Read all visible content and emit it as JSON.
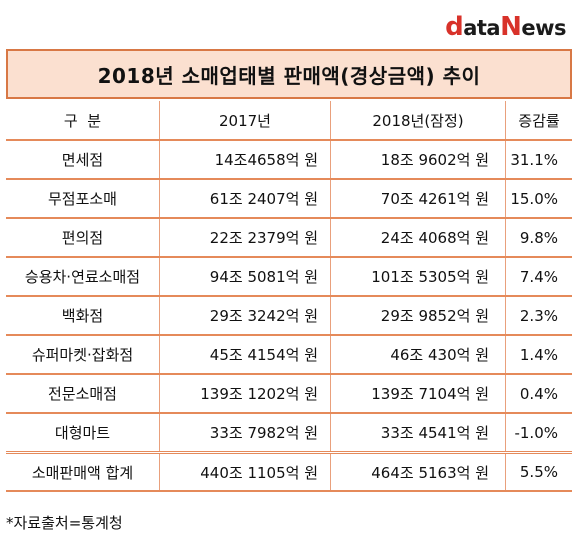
{
  "logo": {
    "first": "d",
    "middle": "ata",
    "n": "N",
    "end": "ews"
  },
  "title": "2018년 소매업태별 판매액(경상금액) 추이",
  "table": {
    "headers": [
      "구  분",
      "2017년",
      "2018년(잠정)",
      "증감률"
    ],
    "rows": [
      {
        "name": "면세점",
        "y2017": "14조4658억 원",
        "y2018": "18조 9602억 원",
        "rate": "31.1%"
      },
      {
        "name": "무점포소매",
        "y2017": "61조 2407억 원",
        "y2018": "70조 4261억 원",
        "rate": "15.0%"
      },
      {
        "name": "편의점",
        "y2017": "22조 2379억 원",
        "y2018": "24조 4068억 원",
        "rate": "9.8%"
      },
      {
        "name": "승용차·연료소매점",
        "y2017": "94조 5081억 원",
        "y2018": "101조 5305억 원",
        "rate": "7.4%"
      },
      {
        "name": "백화점",
        "y2017": "29조 3242억 원",
        "y2018": "29조 9852억 원",
        "rate": "2.3%"
      },
      {
        "name": "슈퍼마켓·잡화점",
        "y2017": "45조 4154억 원",
        "y2018": "46조 430억 원",
        "rate": "1.4%"
      },
      {
        "name": "전문소매점",
        "y2017": "139조 1202억 원",
        "y2018": "139조 7104억 원",
        "rate": "0.4%"
      },
      {
        "name": "대형마트",
        "y2017": "33조 7982억 원",
        "y2018": "33조 4541억 원",
        "rate": "-1.0%"
      }
    ],
    "total": {
      "name": "소매판매액 합계",
      "y2017": "440조 1105억 원",
      "y2018": "464조 5163억 원",
      "rate": "5.5%"
    }
  },
  "source": "*자료출처=통계청"
}
